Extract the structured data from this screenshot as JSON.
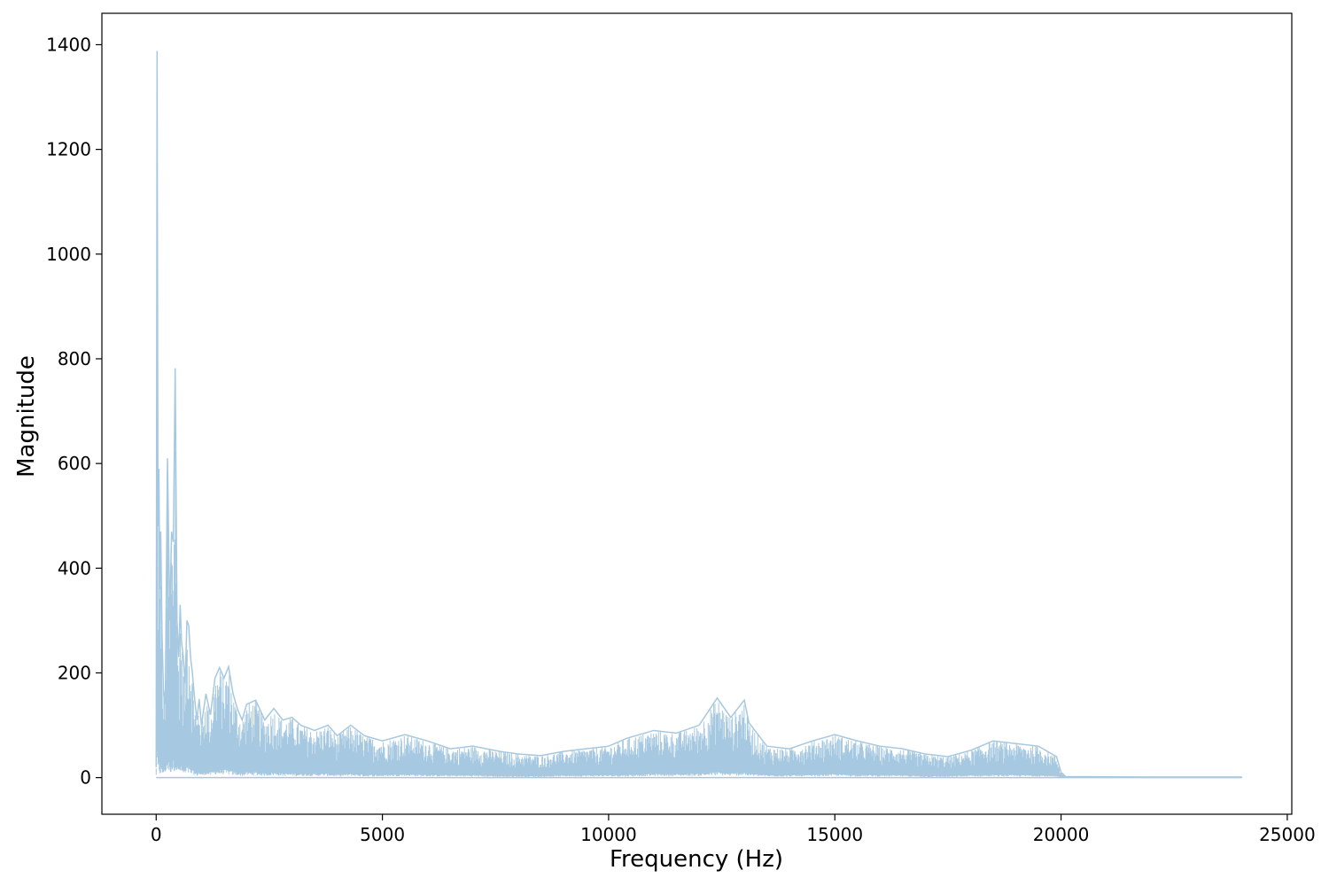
{
  "chart_data": {
    "type": "line",
    "title": "",
    "xlabel": "Frequency (Hz)",
    "ylabel": "Magnitude",
    "xlim": [
      -1200,
      25100
    ],
    "ylim": [
      -70,
      1460
    ],
    "xticks": [
      0,
      5000,
      10000,
      15000,
      20000,
      25000
    ],
    "yticks": [
      0,
      200,
      400,
      600,
      800,
      1000,
      1200,
      1400
    ],
    "xtick_labels": [
      "0",
      "5000",
      "10000",
      "15000",
      "20000",
      "25000"
    ],
    "ytick_labels": [
      "0",
      "200",
      "400",
      "600",
      "800",
      "1000",
      "1200",
      "1400"
    ],
    "grid": false,
    "legend": false,
    "colors": {
      "line": "#a6c8e0",
      "axes": "#000000",
      "background": "#ffffff"
    },
    "series": [
      {
        "x": [
          0,
          20,
          40,
          60,
          80,
          100,
          130,
          160,
          200,
          250,
          300,
          340,
          380,
          420,
          460,
          500,
          530,
          560,
          600,
          640,
          680,
          720,
          760,
          800,
          850,
          900,
          950,
          1000,
          1100,
          1200,
          1300,
          1400,
          1500,
          1600,
          1700,
          1800,
          1900,
          2000,
          2200,
          2400,
          2600,
          2800,
          3000,
          3200,
          3500,
          3800,
          4000,
          4300,
          4600,
          5000,
          5500,
          6000,
          6500,
          7000,
          7600,
          8000,
          8500,
          9000,
          9500,
          10000,
          10400,
          11000,
          11500,
          12000,
          12400,
          12700,
          13000,
          13100,
          13500,
          14000,
          14500,
          15000,
          15500,
          16000,
          16500,
          17000,
          17500,
          18000,
          18500,
          19000,
          19500,
          19900,
          20000,
          20100,
          22000,
          24000
        ],
        "y": [
          20,
          1388,
          480,
          590,
          360,
          470,
          270,
          170,
          140,
          610,
          300,
          470,
          450,
          782,
          300,
          230,
          330,
          260,
          230,
          180,
          300,
          290,
          230,
          200,
          150,
          110,
          150,
          100,
          160,
          120,
          190,
          210,
          190,
          212,
          160,
          130,
          110,
          140,
          148,
          110,
          132,
          110,
          115,
          100,
          90,
          100,
          80,
          100,
          80,
          70,
          82,
          70,
          55,
          60,
          50,
          45,
          42,
          50,
          55,
          60,
          75,
          90,
          85,
          100,
          152,
          115,
          148,
          105,
          60,
          55,
          70,
          82,
          70,
          60,
          55,
          45,
          40,
          52,
          70,
          65,
          60,
          40,
          10,
          2,
          1,
          1
        ],
        "floor": [
          5,
          3,
          3,
          6,
          5,
          4,
          3,
          8,
          10,
          12,
          8,
          10,
          10,
          14,
          10,
          8,
          10,
          7,
          6,
          5,
          8,
          6,
          5,
          5,
          4,
          3,
          5,
          3,
          5,
          4,
          6,
          5,
          6,
          5,
          4,
          4,
          3,
          4,
          4,
          3,
          4,
          3,
          3,
          3,
          3,
          3,
          2,
          3,
          2,
          2,
          3,
          2,
          2,
          2,
          1,
          1,
          1,
          2,
          2,
          2,
          2,
          3,
          3,
          3,
          4,
          3,
          4,
          3,
          2,
          2,
          2,
          3,
          2,
          2,
          2,
          1,
          1,
          2,
          2,
          2,
          2,
          1,
          0,
          0,
          0,
          0
        ]
      }
    ]
  }
}
